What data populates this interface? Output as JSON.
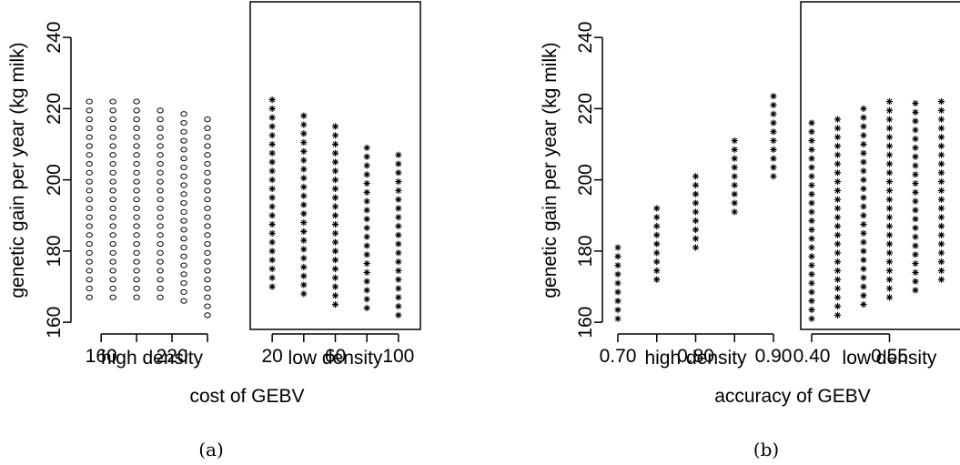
{
  "figure": {
    "left_caption": "(a)",
    "right_caption": "(b)"
  },
  "chart_data": [
    {
      "type": "scatter",
      "panel": "a",
      "ylabel": "genetic gain per year (kg milk)",
      "xlabel": "cost of GEBV",
      "ylim": [
        158,
        250
      ],
      "yticks": [
        160,
        180,
        200,
        220,
        240
      ],
      "grid": false,
      "subplots": [
        {
          "name": "high density",
          "marker": "circle",
          "xlim": [
            146,
            260
          ],
          "xticks": [
            160,
            220
          ],
          "x_minor_ticks": [
            160,
            190,
            220,
            250
          ],
          "columns": [
            {
              "x": 150,
              "ymin": 167,
              "ymax": 224
            },
            {
              "x": 170,
              "ymin": 167,
              "ymax": 223
            },
            {
              "x": 190,
              "ymin": 167,
              "ymax": 222
            },
            {
              "x": 210,
              "ymin": 167,
              "ymax": 220
            },
            {
              "x": 230,
              "ymin": 166,
              "ymax": 220
            },
            {
              "x": 250,
              "ymin": 162,
              "ymax": 219
            }
          ]
        },
        {
          "name": "low density",
          "marker": "asterisk",
          "xlim": [
            13,
            107
          ],
          "xticks": [
            20,
            60,
            100
          ],
          "x_minor_ticks": [
            20,
            40,
            60,
            80,
            100
          ],
          "columns": [
            {
              "x": 20,
              "ymin": 170,
              "ymax": 224
            },
            {
              "x": 40,
              "ymin": 168,
              "ymax": 219
            },
            {
              "x": 60,
              "ymin": 165,
              "ymax": 216
            },
            {
              "x": 80,
              "ymin": 164,
              "ymax": 211
            },
            {
              "x": 100,
              "ymin": 162,
              "ymax": 209
            }
          ]
        }
      ]
    },
    {
      "type": "scatter",
      "panel": "b",
      "ylabel": "genetic gain per year (kg milk)",
      "xlabel": "accuracy of GEBV",
      "ylim": [
        158,
        250
      ],
      "yticks": [
        160,
        180,
        200,
        220,
        240
      ],
      "grid": false,
      "subplots": [
        {
          "name": "high density",
          "marker": "asterisk",
          "xlim": [
            0.7,
            0.9
          ],
          "xticks": [
            0.7,
            0.8,
            0.9
          ],
          "xtick_labels": [
            "0.70",
            "0.80",
            "0.90"
          ],
          "x_minor_ticks": [
            0.7,
            0.75,
            0.8,
            0.85,
            0.9
          ],
          "columns": [
            {
              "x": 0.7,
              "ymin": 161,
              "ymax": 181
            },
            {
              "x": 0.75,
              "ymin": 172,
              "ymax": 192
            },
            {
              "x": 0.8,
              "ymin": 181,
              "ymax": 202
            },
            {
              "x": 0.85,
              "ymin": 191,
              "ymax": 213
            },
            {
              "x": 0.9,
              "ymin": 201,
              "ymax": 224
            }
          ]
        },
        {
          "name": "low density",
          "marker": "asterisk",
          "xlim": [
            0.4,
            0.7
          ],
          "xticks": [
            0.4,
            0.55
          ],
          "xtick_labels": [
            "0.40",
            "0.55"
          ],
          "x_minor_ticks": [
            0.4,
            0.55
          ],
          "columns": [
            {
              "x": 0.4,
              "ymin": 161,
              "ymax": 217
            },
            {
              "x": 0.45,
              "ymin": 162,
              "ymax": 219
            },
            {
              "x": 0.5,
              "ymin": 165,
              "ymax": 220
            },
            {
              "x": 0.55,
              "ymin": 167,
              "ymax": 222
            },
            {
              "x": 0.6,
              "ymin": 169,
              "ymax": 223
            },
            {
              "x": 0.65,
              "ymin": 172,
              "ymax": 224
            }
          ]
        }
      ]
    }
  ]
}
